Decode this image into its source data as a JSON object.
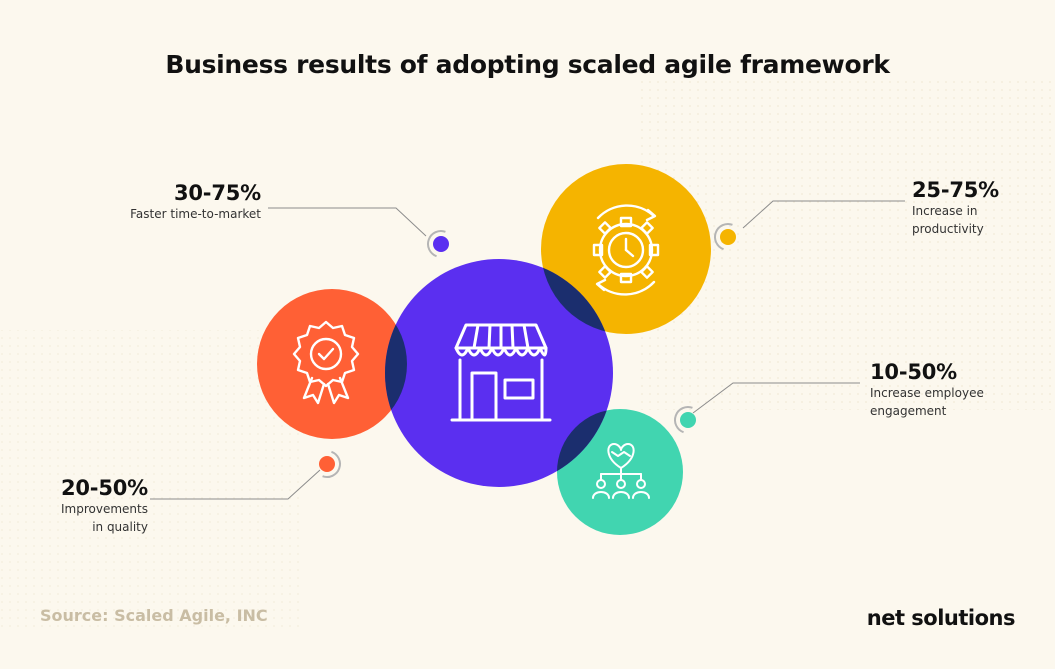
{
  "title": "Business results of adopting scaled agile framework",
  "stats": [
    {
      "id": "time-to-market",
      "value": "30-75%",
      "label": "Faster time-to-market"
    },
    {
      "id": "productivity",
      "value": "25-75%",
      "label": "Increase in\nproductivity"
    },
    {
      "id": "engagement",
      "value": "10-50%",
      "label": "Increase employee\nengagement"
    },
    {
      "id": "quality",
      "value": "20-50%",
      "label": "Improvements\nin quality"
    }
  ],
  "source": "Source: Scaled Agile, INC",
  "brand": "net solutions",
  "colors": {
    "background": "#fcf8ee",
    "purple": "#5b2ff0",
    "yellow": "#f5b400",
    "orange": "#ff6035",
    "teal": "#41d5b0",
    "overlap": "#1b2e6e"
  },
  "icons": {
    "center": "storefront-icon",
    "yellow": "clock-gear-cycle-icon",
    "orange": "award-badge-icon",
    "teal": "handshake-team-icon"
  }
}
